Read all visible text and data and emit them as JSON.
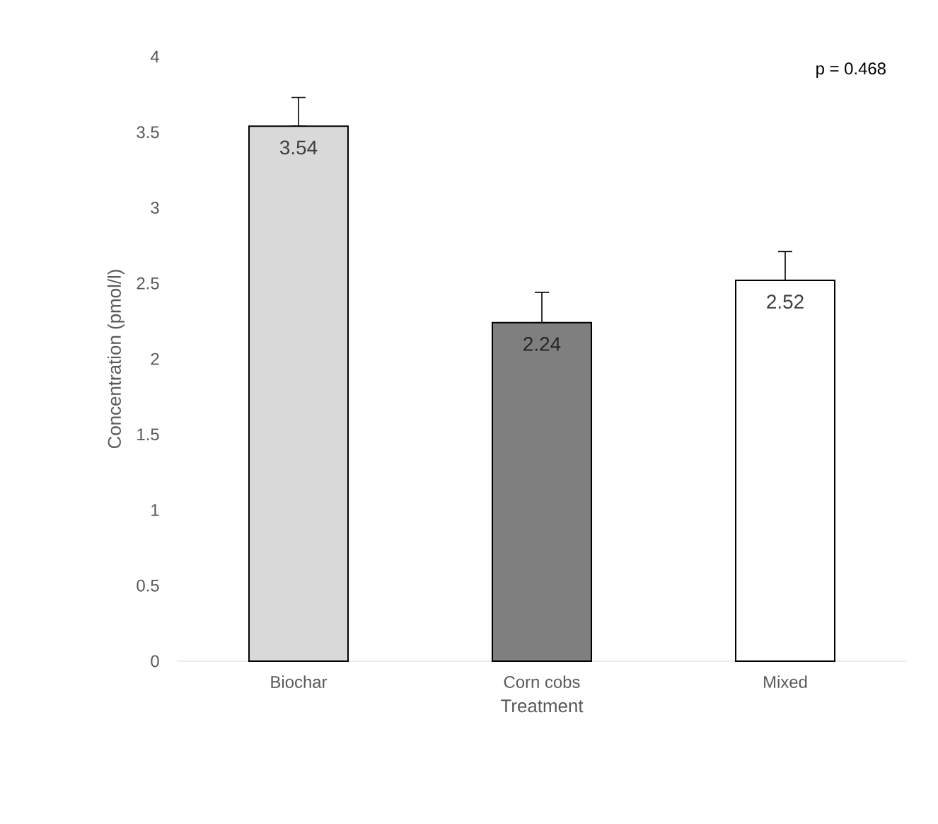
{
  "chart_data": {
    "type": "bar",
    "xlabel": "Treatment",
    "ylabel": "Concentration (pmol/l)",
    "categories": [
      "Biochar",
      "Corn cobs",
      "Mixed"
    ],
    "values": [
      3.54,
      2.24,
      2.52
    ],
    "colors": [
      "#d9d9d9",
      "#7f7f7f",
      "#ffffff"
    ],
    "errors": [
      [
        3.54,
        3.73
      ],
      [
        2.24,
        2.44
      ],
      [
        2.52,
        2.71
      ]
    ],
    "data_labels": true,
    "ylim": [
      0,
      4
    ],
    "yticks": [
      0,
      0.5,
      1,
      1.5,
      2,
      2.5,
      3,
      3.5,
      4
    ],
    "annotations": [
      "p = 0.468"
    ]
  }
}
